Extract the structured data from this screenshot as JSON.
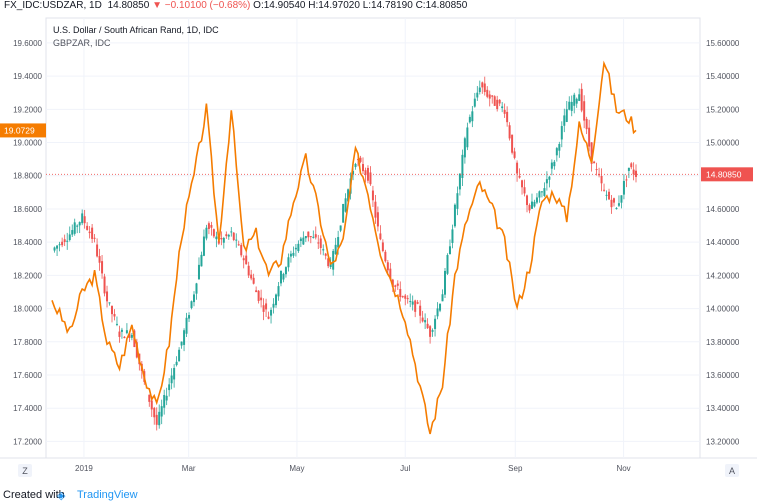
{
  "header": {
    "symbol": "FX_IDC:USDZAR, 1D",
    "last": "14.80850",
    "change": "−0.10100 (−0.68%)",
    "open": "O:14.90540",
    "high": "H:14.97020",
    "low": "L:14.78190",
    "close": "C:14.80850"
  },
  "legend": {
    "line1": "U.S. Dollar / South African Rand, 1D, IDC",
    "line2": "GBPZAR, IDC"
  },
  "footer": {
    "created": "Created with",
    "brand": "TradingView"
  },
  "colors": {
    "up": "#26a69a",
    "down": "#ef5350",
    "overlay": "#f57c00",
    "grid": "#f0f3fa",
    "axis_text": "#50535e"
  },
  "chart_data": {
    "type": "candlestick with line overlay",
    "left_axis": {
      "label_series": "GBPZAR",
      "range": [
        17.1,
        19.75
      ],
      "ticks": [
        "17.2000",
        "17.4000",
        "17.6000",
        "17.8000",
        "18.0000",
        "18.2000",
        "18.4000",
        "18.6000",
        "18.8000",
        "19.0000",
        "19.2000",
        "19.4000",
        "19.6000"
      ],
      "current_label": "19.0729",
      "current_value": 19.0729
    },
    "right_axis": {
      "label_series": "USDZAR",
      "range": [
        13.1,
        15.75
      ],
      "ticks": [
        "13.20000",
        "13.40000",
        "13.60000",
        "13.80000",
        "14.00000",
        "14.20000",
        "14.40000",
        "14.60000",
        "14.80000",
        "15.00000",
        "15.20000",
        "15.40000",
        "15.60000"
      ],
      "current_label": "14.80850",
      "current_value": 14.8085
    },
    "x_axis": {
      "start": "2018-12-14",
      "end": "2019-11-08",
      "ticks": [
        "2019",
        "Mar",
        "May",
        "Jul",
        "Sep",
        "Nov"
      ],
      "tick_dates": [
        "2019-01-01",
        "2019-03-01",
        "2019-05-01",
        "2019-07-01",
        "2019-09-01",
        "2019-11-01"
      ]
    },
    "series": [
      {
        "name": "USDZAR",
        "kind": "candles",
        "axis": "right",
        "points": [
          [
            "2018-12-14",
            14.35
          ],
          [
            "2018-12-24",
            14.45
          ],
          [
            "2018-12-31",
            14.55
          ],
          [
            "2019-01-07",
            14.4
          ],
          [
            "2019-01-14",
            14.05
          ],
          [
            "2019-01-21",
            13.85
          ],
          [
            "2019-01-28",
            13.85
          ],
          [
            "2019-02-04",
            13.55
          ],
          [
            "2019-02-11",
            13.3
          ],
          [
            "2019-02-18",
            13.55
          ],
          [
            "2019-02-25",
            13.8
          ],
          [
            "2019-03-04",
            14.1
          ],
          [
            "2019-03-11",
            14.5
          ],
          [
            "2019-03-18",
            14.4
          ],
          [
            "2019-03-25",
            14.45
          ],
          [
            "2019-04-01",
            14.3
          ],
          [
            "2019-04-08",
            14.1
          ],
          [
            "2019-04-15",
            13.95
          ],
          [
            "2019-04-22",
            14.2
          ],
          [
            "2019-04-29",
            14.35
          ],
          [
            "2019-05-06",
            14.45
          ],
          [
            "2019-05-13",
            14.4
          ],
          [
            "2019-05-20",
            14.25
          ],
          [
            "2019-05-27",
            14.6
          ],
          [
            "2019-06-03",
            14.9
          ],
          [
            "2019-06-10",
            14.8
          ],
          [
            "2019-06-17",
            14.4
          ],
          [
            "2019-06-24",
            14.15
          ],
          [
            "2019-07-01",
            14.05
          ],
          [
            "2019-07-08",
            14.0
          ],
          [
            "2019-07-15",
            13.85
          ],
          [
            "2019-07-22",
            14.1
          ],
          [
            "2019-07-29",
            14.6
          ],
          [
            "2019-08-05",
            15.1
          ],
          [
            "2019-08-12",
            15.35
          ],
          [
            "2019-08-19",
            15.25
          ],
          [
            "2019-08-26",
            15.2
          ],
          [
            "2019-09-02",
            14.8
          ],
          [
            "2019-09-09",
            14.6
          ],
          [
            "2019-09-16",
            14.7
          ],
          [
            "2019-09-23",
            14.9
          ],
          [
            "2019-09-30",
            15.2
          ],
          [
            "2019-10-07",
            15.3
          ],
          [
            "2019-10-14",
            14.9
          ],
          [
            "2019-10-21",
            14.7
          ],
          [
            "2019-10-28",
            14.6
          ],
          [
            "2019-11-04",
            14.85
          ],
          [
            "2019-11-08",
            14.8085
          ]
        ]
      },
      {
        "name": "GBPZAR",
        "kind": "line",
        "axis": "left",
        "points": [
          [
            "2018-12-14",
            18.05
          ],
          [
            "2018-12-24",
            17.85
          ],
          [
            "2018-12-31",
            18.1
          ],
          [
            "2019-01-07",
            18.2
          ],
          [
            "2019-01-14",
            17.8
          ],
          [
            "2019-01-21",
            17.65
          ],
          [
            "2019-01-28",
            17.9
          ],
          [
            "2019-02-04",
            17.6
          ],
          [
            "2019-02-11",
            17.4
          ],
          [
            "2019-02-18",
            17.8
          ],
          [
            "2019-02-25",
            18.45
          ],
          [
            "2019-03-04",
            18.8
          ],
          [
            "2019-03-11",
            19.2
          ],
          [
            "2019-03-18",
            18.4
          ],
          [
            "2019-03-25",
            19.2
          ],
          [
            "2019-04-01",
            18.35
          ],
          [
            "2019-04-08",
            18.45
          ],
          [
            "2019-04-15",
            18.2
          ],
          [
            "2019-04-22",
            18.3
          ],
          [
            "2019-04-29",
            18.65
          ],
          [
            "2019-05-06",
            18.9
          ],
          [
            "2019-05-13",
            18.6
          ],
          [
            "2019-05-20",
            18.25
          ],
          [
            "2019-05-27",
            18.4
          ],
          [
            "2019-06-03",
            18.95
          ],
          [
            "2019-06-10",
            18.7
          ],
          [
            "2019-06-17",
            18.35
          ],
          [
            "2019-06-24",
            18.15
          ],
          [
            "2019-07-01",
            17.95
          ],
          [
            "2019-07-08",
            17.6
          ],
          [
            "2019-07-15",
            17.25
          ],
          [
            "2019-07-22",
            17.55
          ],
          [
            "2019-07-29",
            18.2
          ],
          [
            "2019-08-05",
            18.55
          ],
          [
            "2019-08-12",
            18.75
          ],
          [
            "2019-08-19",
            18.6
          ],
          [
            "2019-08-26",
            18.4
          ],
          [
            "2019-09-02",
            18.0
          ],
          [
            "2019-09-09",
            18.25
          ],
          [
            "2019-09-16",
            18.65
          ],
          [
            "2019-09-23",
            18.7
          ],
          [
            "2019-09-30",
            18.55
          ],
          [
            "2019-10-07",
            19.1
          ],
          [
            "2019-10-14",
            18.9
          ],
          [
            "2019-10-21",
            19.5
          ],
          [
            "2019-10-28",
            19.2
          ],
          [
            "2019-11-04",
            19.15
          ],
          [
            "2019-11-08",
            19.0729
          ]
        ]
      }
    ],
    "grid": true
  }
}
